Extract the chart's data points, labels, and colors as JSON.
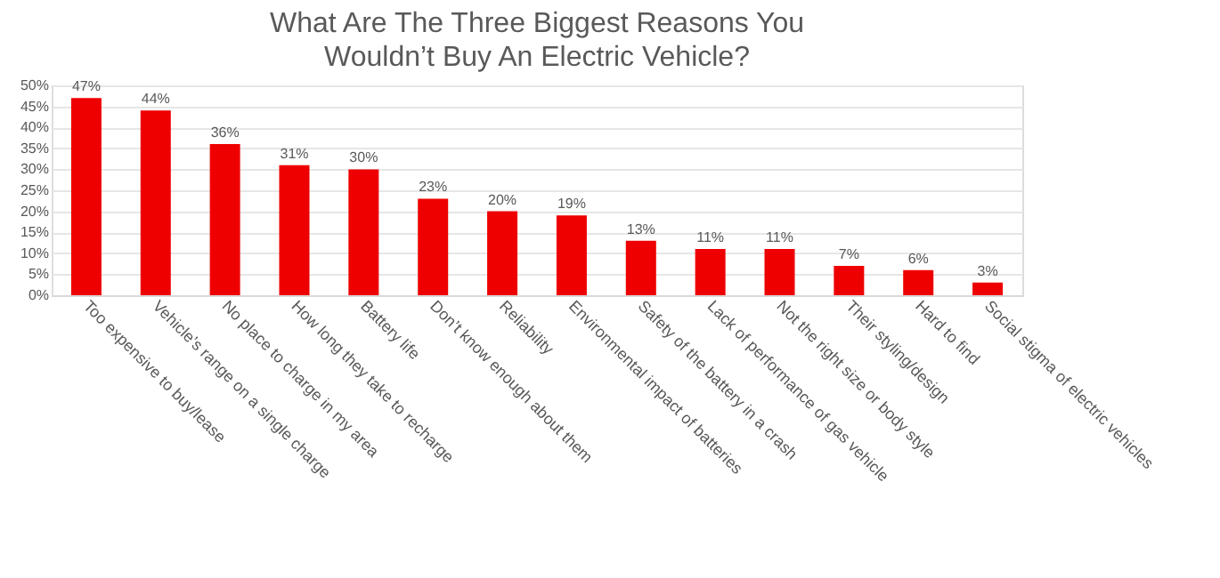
{
  "chart_data": {
    "type": "bar",
    "title": "What Are The Three Biggest Reasons You Wouldn’t Buy An Electric Vehicle?",
    "categories": [
      "Too expensive to buy/lease",
      "Vehicle’s range on a single charge",
      "No place to charge in my area",
      "How long they take to recharge",
      "Battery life",
      "Don’t know enough about them",
      "Reliability",
      "Environmental impact of batteries",
      "Safety of the battery in a crash",
      "Lack of performance of gas vehicle",
      "Not the right size or body style",
      "Their styling/design",
      "Hard to find",
      "Social stigma of electric vehicles"
    ],
    "values": [
      47,
      44,
      36,
      31,
      30,
      23,
      20,
      19,
      13,
      11,
      11,
      7,
      6,
      3
    ],
    "value_labels": [
      "47%",
      "44%",
      "36%",
      "31%",
      "30%",
      "23%",
      "20%",
      "19%",
      "13%",
      "11%",
      "11%",
      "7%",
      "6%",
      "3%"
    ],
    "color": "#ee0000",
    "ylim": [
      0,
      50
    ],
    "yticks": [
      {
        "value": 0,
        "label": "0%"
      },
      {
        "value": 5,
        "label": "5%"
      },
      {
        "value": 10,
        "label": "10%"
      },
      {
        "value": 15,
        "label": "15%"
      },
      {
        "value": 20,
        "label": "20%"
      },
      {
        "value": 25,
        "label": "25%"
      },
      {
        "value": 30,
        "label": "30%"
      },
      {
        "value": 35,
        "label": "35%"
      },
      {
        "value": 40,
        "label": "40%"
      },
      {
        "value": 45,
        "label": "45%"
      },
      {
        "value": 50,
        "label": "50%"
      }
    ],
    "grid": "y"
  }
}
